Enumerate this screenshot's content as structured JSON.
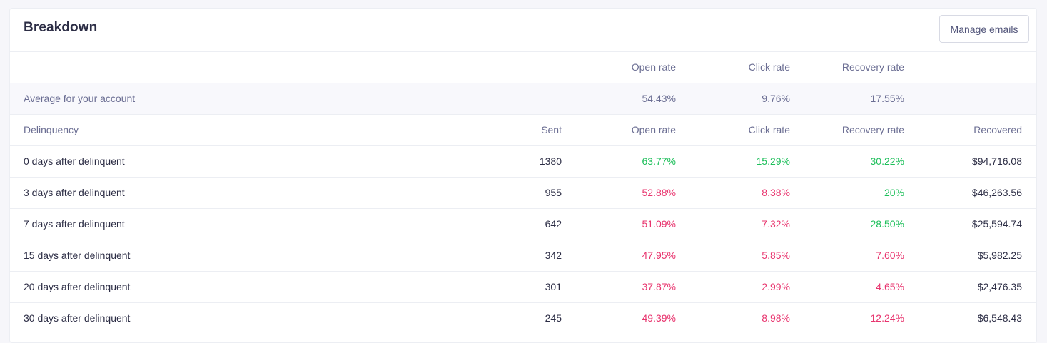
{
  "header": {
    "title": "Breakdown",
    "manage_label": "Manage emails"
  },
  "summary": {
    "headers": {
      "open_rate": "Open rate",
      "click_rate": "Click rate",
      "recovery_rate": "Recovery rate"
    },
    "average": {
      "label": "Average for your account",
      "open_rate": "54.43%",
      "click_rate": "9.76%",
      "recovery_rate": "17.55%"
    }
  },
  "table": {
    "columns": {
      "delinquency": "Delinquency",
      "sent": "Sent",
      "open_rate": "Open rate",
      "click_rate": "Click rate",
      "recovery_rate": "Recovery rate",
      "recovered": "Recovered"
    },
    "rows": [
      {
        "label": "0 days after delinquent",
        "sent": "1380",
        "open_rate": "63.77%",
        "click_rate": "15.29%",
        "recovery_rate": "30.22%",
        "recovered": "$94,716.08"
      },
      {
        "label": "3 days after delinquent",
        "sent": "955",
        "open_rate": "52.88%",
        "click_rate": "8.38%",
        "recovery_rate": "20%",
        "recovered": "$46,263.56"
      },
      {
        "label": "7 days after delinquent",
        "sent": "642",
        "open_rate": "51.09%",
        "click_rate": "7.32%",
        "recovery_rate": "28.50%",
        "recovered": "$25,594.74"
      },
      {
        "label": "15 days after delinquent",
        "sent": "342",
        "open_rate": "47.95%",
        "click_rate": "5.85%",
        "recovery_rate": "7.60%",
        "recovered": "$5,982.25"
      },
      {
        "label": "20 days after delinquent",
        "sent": "301",
        "open_rate": "37.87%",
        "click_rate": "2.99%",
        "recovery_rate": "4.65%",
        "recovered": "$2,476.35"
      },
      {
        "label": "30 days after delinquent",
        "sent": "245",
        "open_rate": "49.39%",
        "click_rate": "8.98%",
        "recovery_rate": "12.24%",
        "recovered": "$6,548.43"
      }
    ]
  },
  "colors": {
    "above_average": "#1dbf5a",
    "below_average": "#e8346e"
  }
}
